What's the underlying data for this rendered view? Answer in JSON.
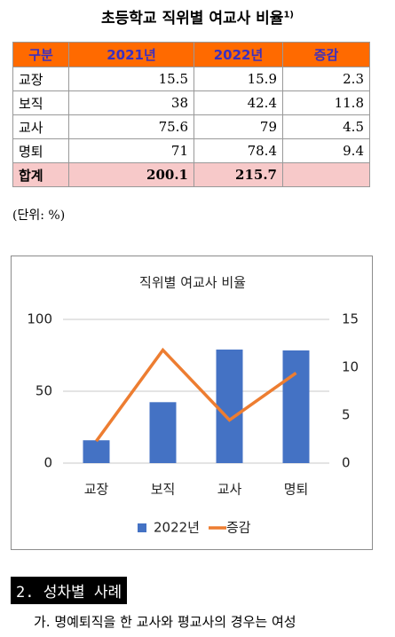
{
  "header": {
    "title": "초등학교 직위별 여교사 비율",
    "footnote": "1)"
  },
  "table": {
    "columns": [
      "구분",
      "2021년",
      "2022년",
      "증감"
    ],
    "rows": [
      [
        "교장",
        "15.5",
        "15.9",
        "2.3"
      ],
      [
        "보직",
        "38",
        "42.4",
        "11.8"
      ],
      [
        "교사",
        "75.6",
        "79",
        "4.5"
      ],
      [
        "명퇴",
        "71",
        "78.4",
        "9.4"
      ],
      [
        "합계",
        "200.1",
        "215.7"
      ]
    ]
  },
  "unit_note": "(단위: %)",
  "chart_data": {
    "type": "bar",
    "title": "직위별 여교사 비율",
    "categories": [
      "교장",
      "보직",
      "교사",
      "명퇴"
    ],
    "series": [
      {
        "name": "2022년",
        "color": "#4472c4",
        "values": [
          15.9,
          42.4,
          79,
          78.4
        ]
      },
      {
        "name": "증감",
        "color": "#ed7d31",
        "type": "line",
        "axis": "y2",
        "values": [
          2.3,
          11.8,
          4.5,
          9.4
        ]
      }
    ],
    "ylim": [
      0,
      100
    ],
    "yticks": [
      0,
      50,
      100
    ],
    "y2lim": [
      0,
      15
    ],
    "y2ticks": [
      0,
      5,
      10,
      15
    ],
    "grid": true,
    "legend": "bottom"
  },
  "section": {
    "heading": "2. 성차별 사례",
    "paragraph": "가. 명예퇴직을 한 교사와 평교사의 경우는 여성"
  }
}
